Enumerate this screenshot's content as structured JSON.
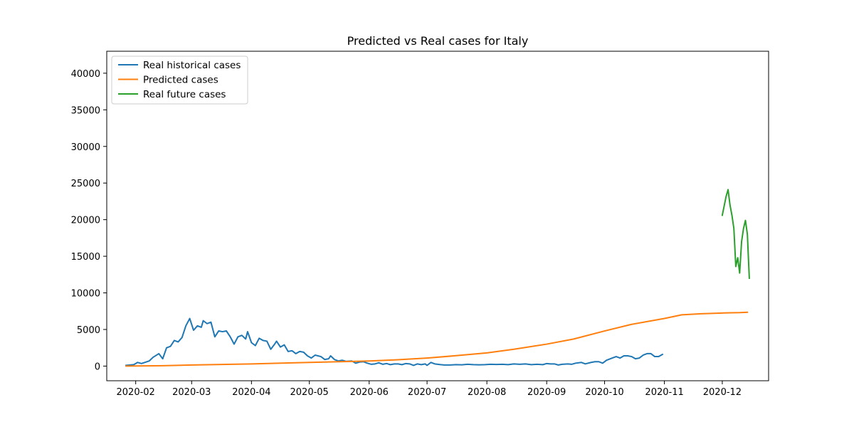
{
  "chart_data": {
    "type": "line",
    "title": "Predicted vs Real cases for Italy",
    "xlabel": "",
    "ylabel": "",
    "x_range": [
      "2020-01-17",
      "2020-12-25"
    ],
    "ylim": [
      -2000,
      43000
    ],
    "x_ticks": [
      "2020-02-01",
      "2020-03-01",
      "2020-04-01",
      "2020-05-01",
      "2020-06-01",
      "2020-07-01",
      "2020-08-01",
      "2020-09-01",
      "2020-10-01",
      "2020-11-01",
      "2020-12-01"
    ],
    "x_tick_labels": [
      "2020-02",
      "2020-03",
      "2020-04",
      "2020-05",
      "2020-06",
      "2020-07",
      "2020-08",
      "2020-09",
      "2020-10",
      "2020-11",
      "2020-12"
    ],
    "y_ticks": [
      0,
      5000,
      10000,
      15000,
      20000,
      25000,
      30000,
      35000,
      40000
    ],
    "y_tick_labels": [
      "0",
      "5000",
      "10000",
      "15000",
      "20000",
      "25000",
      "30000",
      "35000",
      "40000"
    ],
    "grid": false,
    "legend_position": "top-left",
    "series": [
      {
        "name": "Real historical cases",
        "color": "#1f77b4",
        "points": [
          [
            "2020-01-27",
            100
          ],
          [
            "2020-01-31",
            200
          ],
          [
            "2020-02-02",
            500
          ],
          [
            "2020-02-04",
            350
          ],
          [
            "2020-02-08",
            700
          ],
          [
            "2020-02-10",
            1200
          ],
          [
            "2020-02-13",
            1700
          ],
          [
            "2020-02-15",
            1000
          ],
          [
            "2020-02-17",
            2500
          ],
          [
            "2020-02-19",
            2700
          ],
          [
            "2020-02-21",
            3500
          ],
          [
            "2020-02-23",
            3300
          ],
          [
            "2020-02-25",
            3900
          ],
          [
            "2020-02-27",
            5500
          ],
          [
            "2020-02-29",
            6500
          ],
          [
            "2020-03-02",
            4900
          ],
          [
            "2020-03-04",
            5500
          ],
          [
            "2020-03-06",
            5300
          ],
          [
            "2020-03-07",
            6200
          ],
          [
            "2020-03-09",
            5800
          ],
          [
            "2020-03-11",
            6000
          ],
          [
            "2020-03-13",
            4000
          ],
          [
            "2020-03-15",
            4800
          ],
          [
            "2020-03-17",
            4700
          ],
          [
            "2020-03-19",
            4800
          ],
          [
            "2020-03-21",
            4000
          ],
          [
            "2020-03-23",
            3000
          ],
          [
            "2020-03-25",
            4000
          ],
          [
            "2020-03-27",
            4200
          ],
          [
            "2020-03-29",
            3700
          ],
          [
            "2020-03-30",
            4700
          ],
          [
            "2020-04-01",
            3200
          ],
          [
            "2020-04-03",
            2800
          ],
          [
            "2020-04-05",
            3800
          ],
          [
            "2020-04-07",
            3500
          ],
          [
            "2020-04-09",
            3400
          ],
          [
            "2020-04-11",
            2300
          ],
          [
            "2020-04-13",
            3000
          ],
          [
            "2020-04-14",
            3400
          ],
          [
            "2020-04-16",
            2600
          ],
          [
            "2020-04-18",
            2900
          ],
          [
            "2020-04-20",
            2000
          ],
          [
            "2020-04-22",
            2100
          ],
          [
            "2020-04-24",
            1700
          ],
          [
            "2020-04-26",
            2000
          ],
          [
            "2020-04-28",
            1900
          ],
          [
            "2020-04-30",
            1400
          ],
          [
            "2020-05-02",
            1100
          ],
          [
            "2020-05-04",
            1500
          ],
          [
            "2020-05-07",
            1300
          ],
          [
            "2020-05-09",
            900
          ],
          [
            "2020-05-11",
            1000
          ],
          [
            "2020-05-12",
            1400
          ],
          [
            "2020-05-14",
            900
          ],
          [
            "2020-05-16",
            700
          ],
          [
            "2020-05-18",
            800
          ],
          [
            "2020-05-20",
            650
          ],
          [
            "2020-05-23",
            700
          ],
          [
            "2020-05-25",
            400
          ],
          [
            "2020-05-27",
            550
          ],
          [
            "2020-05-29",
            600
          ],
          [
            "2020-05-31",
            400
          ],
          [
            "2020-06-02",
            250
          ],
          [
            "2020-06-04",
            300
          ],
          [
            "2020-06-06",
            450
          ],
          [
            "2020-06-08",
            250
          ],
          [
            "2020-06-10",
            350
          ],
          [
            "2020-06-12",
            200
          ],
          [
            "2020-06-14",
            300
          ],
          [
            "2020-06-16",
            300
          ],
          [
            "2020-06-18",
            200
          ],
          [
            "2020-06-20",
            350
          ],
          [
            "2020-06-22",
            300
          ],
          [
            "2020-06-24",
            100
          ],
          [
            "2020-06-26",
            300
          ],
          [
            "2020-06-28",
            200
          ],
          [
            "2020-06-30",
            300
          ],
          [
            "2020-07-01",
            100
          ],
          [
            "2020-07-03",
            500
          ],
          [
            "2020-07-05",
            300
          ],
          [
            "2020-07-08",
            200
          ],
          [
            "2020-07-10",
            150
          ],
          [
            "2020-07-13",
            150
          ],
          [
            "2020-07-16",
            200
          ],
          [
            "2020-07-19",
            180
          ],
          [
            "2020-07-22",
            250
          ],
          [
            "2020-07-25",
            200
          ],
          [
            "2020-07-28",
            180
          ],
          [
            "2020-07-31",
            200
          ],
          [
            "2020-08-03",
            250
          ],
          [
            "2020-08-06",
            220
          ],
          [
            "2020-08-09",
            250
          ],
          [
            "2020-08-12",
            200
          ],
          [
            "2020-08-15",
            300
          ],
          [
            "2020-08-18",
            250
          ],
          [
            "2020-08-21",
            300
          ],
          [
            "2020-08-24",
            200
          ],
          [
            "2020-08-27",
            250
          ],
          [
            "2020-08-30",
            200
          ],
          [
            "2020-09-01",
            350
          ],
          [
            "2020-09-03",
            300
          ],
          [
            "2020-09-05",
            300
          ],
          [
            "2020-09-07",
            150
          ],
          [
            "2020-09-09",
            250
          ],
          [
            "2020-09-12",
            300
          ],
          [
            "2020-09-14",
            250
          ],
          [
            "2020-09-16",
            400
          ],
          [
            "2020-09-19",
            500
          ],
          [
            "2020-09-21",
            300
          ],
          [
            "2020-09-24",
            500
          ],
          [
            "2020-09-26",
            600
          ],
          [
            "2020-09-28",
            600
          ],
          [
            "2020-09-30",
            400
          ],
          [
            "2020-10-02",
            800
          ],
          [
            "2020-10-05",
            1100
          ],
          [
            "2020-10-07",
            1300
          ],
          [
            "2020-10-09",
            1100
          ],
          [
            "2020-10-11",
            1400
          ],
          [
            "2020-10-13",
            1400
          ],
          [
            "2020-10-15",
            1300
          ],
          [
            "2020-10-17",
            1000
          ],
          [
            "2020-10-19",
            1100
          ],
          [
            "2020-10-21",
            1500
          ],
          [
            "2020-10-23",
            1700
          ],
          [
            "2020-10-25",
            1700
          ],
          [
            "2020-10-27",
            1300
          ],
          [
            "2020-10-29",
            1300
          ],
          [
            "2020-10-31",
            1600
          ]
        ]
      },
      {
        "name": "Predicted cases",
        "color": "#ff7f0e",
        "points": [
          [
            "2020-01-27",
            0
          ],
          [
            "2020-02-15",
            50
          ],
          [
            "2020-03-01",
            150
          ],
          [
            "2020-04-01",
            300
          ],
          [
            "2020-05-01",
            500
          ],
          [
            "2020-06-01",
            700
          ],
          [
            "2020-06-15",
            850
          ],
          [
            "2020-07-01",
            1100
          ],
          [
            "2020-07-15",
            1400
          ],
          [
            "2020-08-01",
            1800
          ],
          [
            "2020-08-15",
            2300
          ],
          [
            "2020-09-01",
            3000
          ],
          [
            "2020-09-15",
            3700
          ],
          [
            "2020-10-01",
            4800
          ],
          [
            "2020-10-15",
            5700
          ],
          [
            "2020-11-01",
            6500
          ],
          [
            "2020-11-10",
            7000
          ],
          [
            "2020-11-20",
            7150
          ],
          [
            "2020-12-01",
            7250
          ],
          [
            "2020-12-10",
            7300
          ],
          [
            "2020-12-14",
            7350
          ]
        ]
      },
      {
        "name": "Real future cases",
        "color": "#2ca02c",
        "points": [
          [
            "2020-12-01",
            20600
          ],
          [
            "2020-12-03",
            23200
          ],
          [
            "2020-12-04",
            24100
          ],
          [
            "2020-12-05",
            22000
          ],
          [
            "2020-12-06",
            20600
          ],
          [
            "2020-12-07",
            18800
          ],
          [
            "2020-12-08",
            13600
          ],
          [
            "2020-12-09",
            14800
          ],
          [
            "2020-12-10",
            12700
          ],
          [
            "2020-12-11",
            17000
          ],
          [
            "2020-12-12",
            18800
          ],
          [
            "2020-12-13",
            19900
          ],
          [
            "2020-12-14",
            18000
          ],
          [
            "2020-12-15",
            12000
          ]
        ]
      }
    ]
  }
}
